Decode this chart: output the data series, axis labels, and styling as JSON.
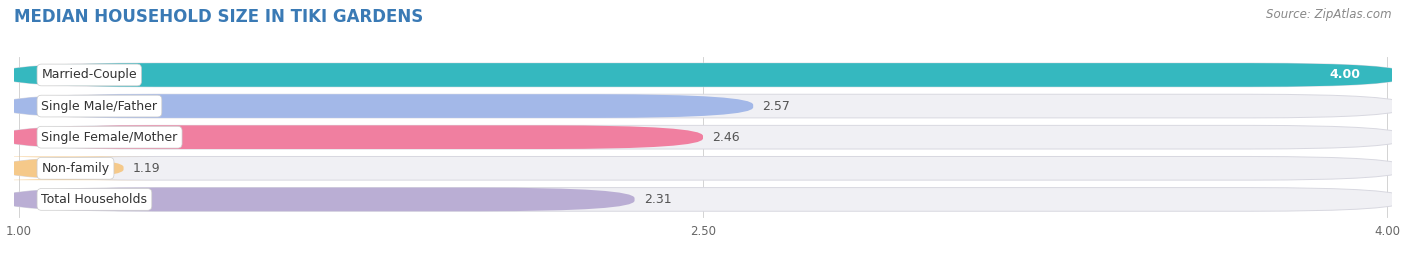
{
  "title": "MEDIAN HOUSEHOLD SIZE IN TIKI GARDENS",
  "source": "Source: ZipAtlas.com",
  "categories": [
    "Married-Couple",
    "Single Male/Father",
    "Single Female/Mother",
    "Non-family",
    "Total Households"
  ],
  "values": [
    4.0,
    2.57,
    2.46,
    1.19,
    2.31
  ],
  "bar_colors": [
    "#35b8bf",
    "#a3b8e8",
    "#f07fa0",
    "#f5c98a",
    "#baaed4"
  ],
  "bar_bg_color": "#f0f0f4",
  "bar_border_color": "#d8d8e0",
  "xlim_min": 1.0,
  "xlim_max": 4.0,
  "xticks": [
    1.0,
    2.5,
    4.0
  ],
  "xtick_labels": [
    "1.00",
    "2.50",
    "4.00"
  ],
  "title_fontsize": 12,
  "source_fontsize": 8.5,
  "label_fontsize": 9,
  "value_fontsize": 9,
  "page_bg_color": "#ffffff",
  "title_color": "#3a7ab5"
}
